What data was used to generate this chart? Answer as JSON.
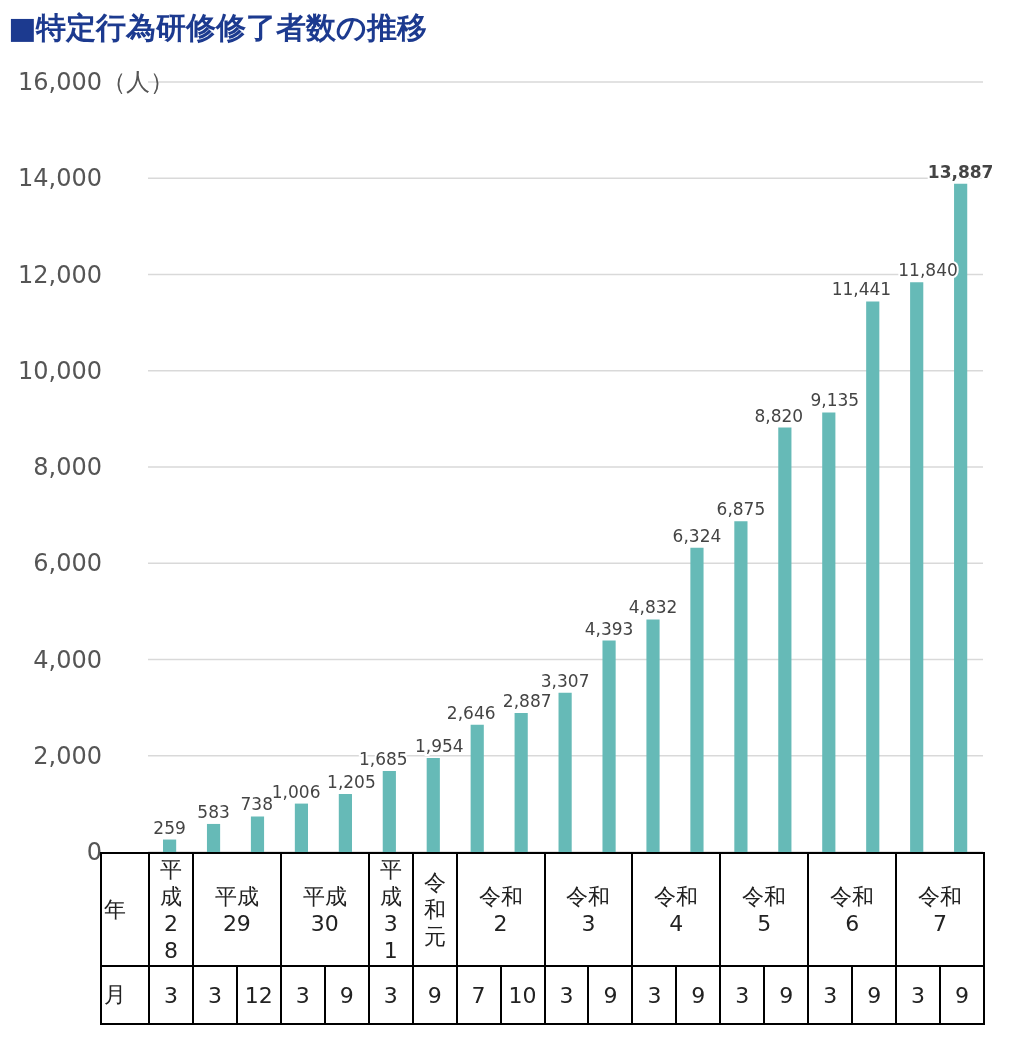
{
  "chart_data": {
    "type": "bar",
    "title": "■特定行為研修修了者数の推移",
    "ylabel": "（人）",
    "categories": [
      "3",
      "3",
      "12",
      "3",
      "9",
      "3",
      "9",
      "7",
      "10",
      "3",
      "9",
      "3",
      "9",
      "3",
      "9",
      "3",
      "9",
      "3",
      "9"
    ],
    "values": [
      259,
      583,
      738,
      1006,
      1205,
      1685,
      1954,
      2646,
      2887,
      3307,
      4393,
      4832,
      6324,
      6875,
      8820,
      9135,
      11441,
      11840,
      13887
    ],
    "color": "#66bab7",
    "value_labels": [
      "259",
      "583",
      "738",
      "1,006",
      "1,205",
      "1,685",
      "1,954",
      "2,646",
      "2,887",
      "3,307",
      "4,393",
      "4,832",
      "6,324",
      "6,875",
      "8,820",
      "9,135",
      "11,441",
      "11,840",
      "13,887"
    ],
    "ylim": [
      0,
      16000
    ],
    "yticks": [
      0,
      {
        "value": 2000,
        "label": "2,000"
      },
      {
        "value": 4000,
        "label": "4,000"
      },
      {
        "value": 6000,
        "label": "6,000"
      },
      {
        "value": 8000,
        "label": "8,000"
      },
      {
        "value": 10000,
        "label": "10,000"
      },
      {
        "value": 12000,
        "label": "12,000"
      },
      {
        "value": 14000,
        "label": "14,000"
      },
      {
        "value": 16000,
        "label": "16,000"
      }
    ],
    "grid": "y",
    "annotations": [
      "年",
      "月",
      "平成28",
      "平成29",
      "平成30",
      "平成31",
      "令和元",
      "令和2",
      "令和3",
      "令和4",
      "令和5",
      "令和6",
      "令和7"
    ]
  }
}
